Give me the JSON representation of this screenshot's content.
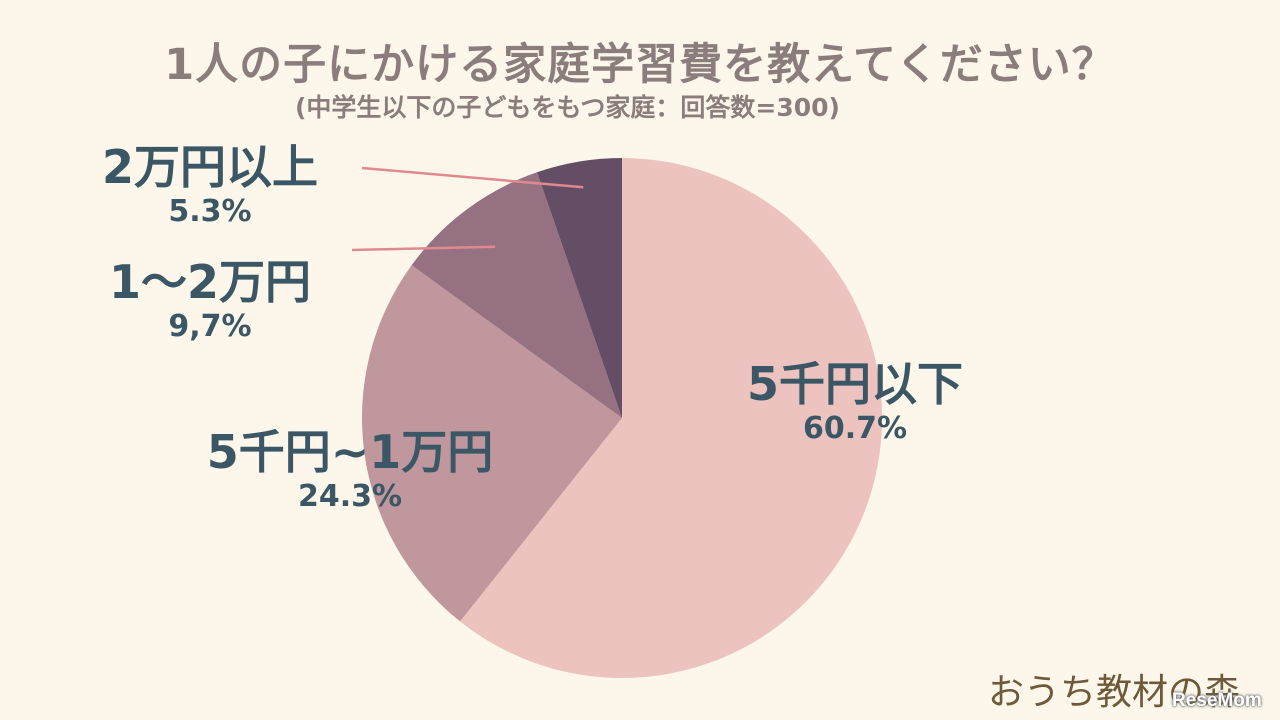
{
  "chart_data": {
    "type": "pie",
    "title": "1人の子にかける家庭学習費を教えてください？",
    "subtitle": "(中学生以下の子どもをもつ家庭：回答数=300)",
    "slices": [
      {
        "label": "5千円以下",
        "value": 60.7,
        "value_text": "60.7%",
        "color": "#ecc3bf"
      },
      {
        "label": "5千円~1万円",
        "value": 24.3,
        "value_text": "24.3%",
        "color": "#c0979d"
      },
      {
        "label": "1〜2万円",
        "value": 9.7,
        "value_text": "9,7%",
        "color": "#967181"
      },
      {
        "label": "2万円以上",
        "value": 5.3,
        "value_text": "5.3%",
        "color": "#644e66"
      }
    ],
    "start": "top",
    "direction": "clockwise",
    "label_text_color": "#3b5766",
    "leader_line_color": "#e0898f"
  },
  "logo_text": "おうち教材の森",
  "watermark_text": "ReseMom"
}
